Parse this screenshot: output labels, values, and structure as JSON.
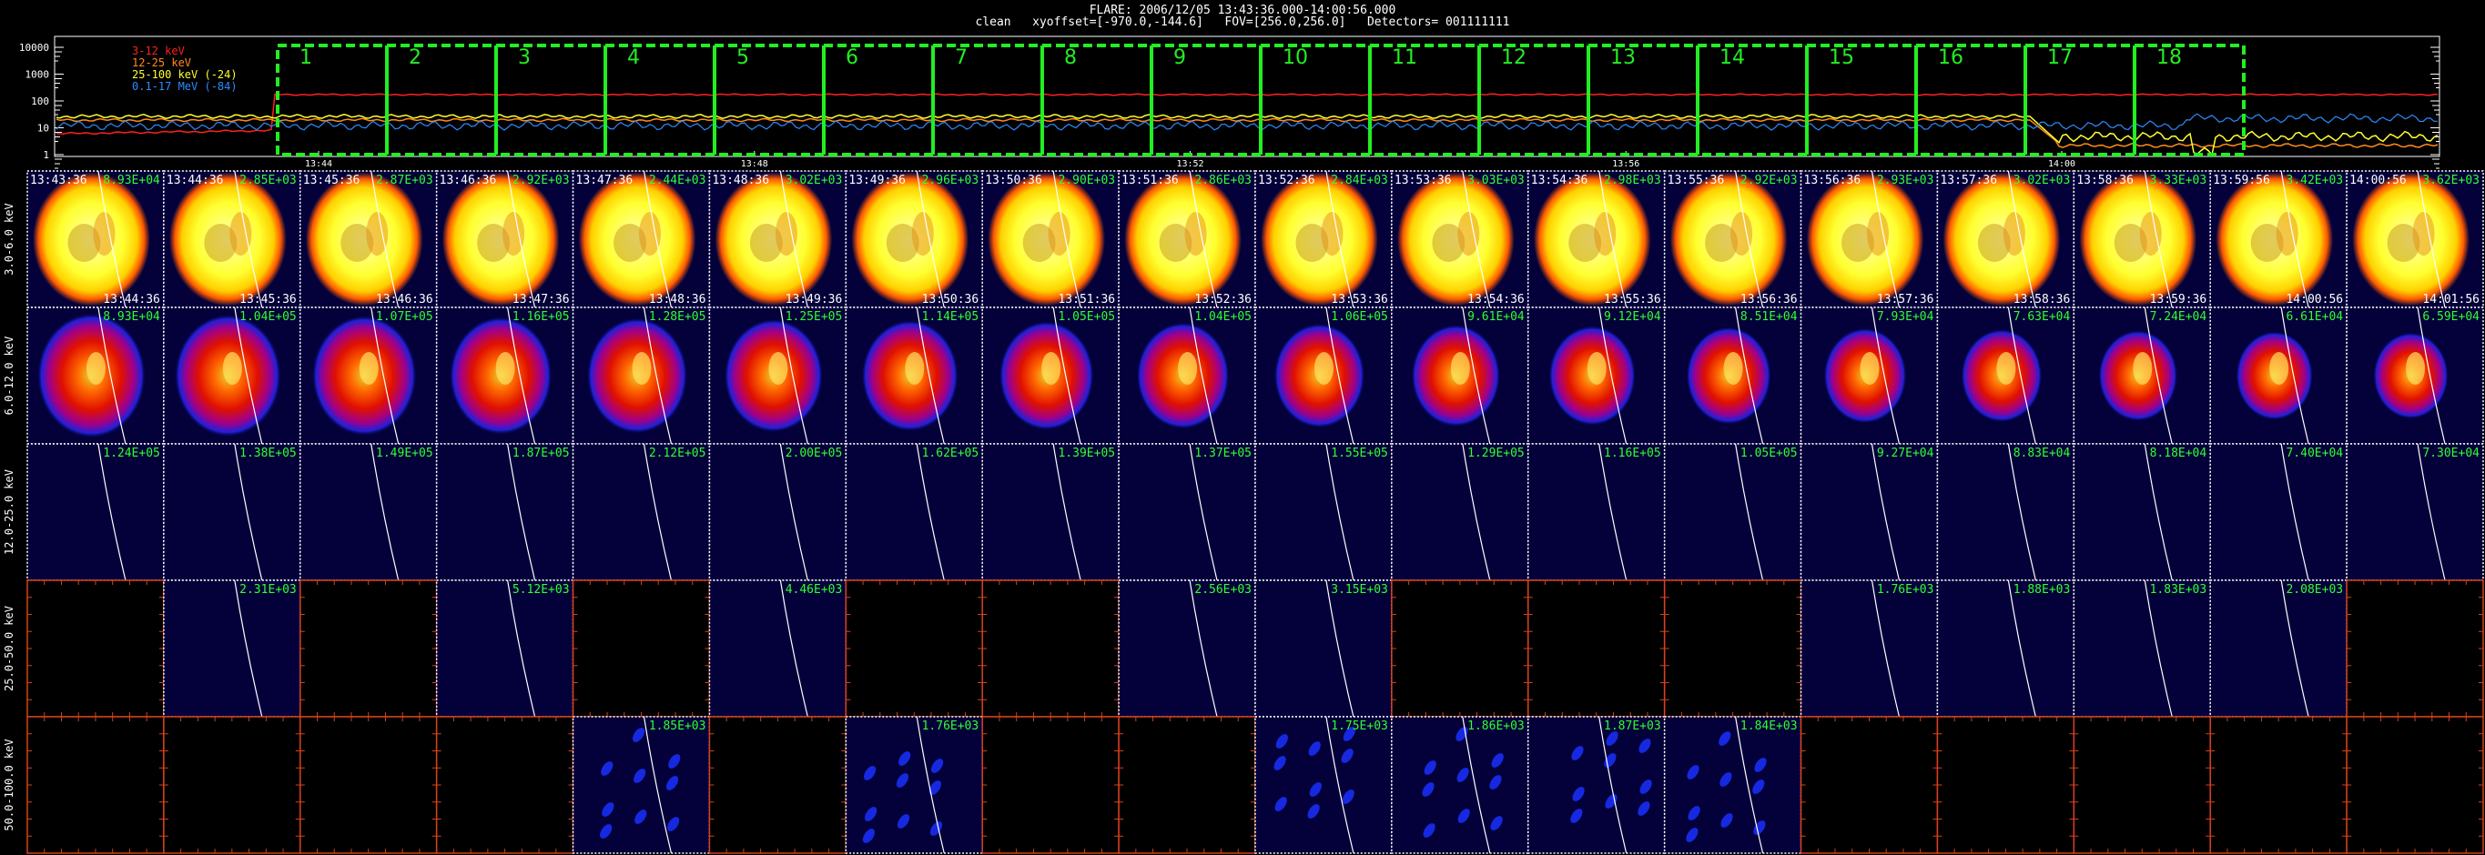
{
  "header": {
    "line1": "FLARE: 2006/12/05 13:43:36.000-14:00:56.000",
    "line2": "clean   xyoffset=[-970.0,-144.6]   FOV=[256.0,256.0]   Detectors= 001111111"
  },
  "lightcurve": {
    "legend": [
      {
        "label": "3-12 keV",
        "color": "#ff2020"
      },
      {
        "label": "12-25 keV",
        "color": "#ff8c1a"
      },
      {
        "label": "25-100 keV (-24)",
        "color": "#ffff30"
      },
      {
        "label": "0.1-17 MeV (-84)",
        "color": "#2a8cff"
      }
    ],
    "ytick_labels": [
      "10000",
      "1000",
      "100",
      "10",
      "1"
    ],
    "xtick_labels": [
      "13:44",
      "13:48",
      "13:52",
      "13:56",
      "14:00"
    ],
    "interval_labels": [
      "1",
      "2",
      "3",
      "4",
      "5",
      "6",
      "7",
      "8",
      "9",
      "10",
      "11",
      "12",
      "13",
      "14",
      "15",
      "16",
      "17",
      "18"
    ],
    "interval_color": "#22ee22"
  },
  "chart_data": {
    "type": "heatmap",
    "bands": [
      "3.0-6.0 keV",
      "6.0-12.0 keV",
      "12.0-25.0 keV",
      "25.0-50.0 keV",
      "50.0-100.0 keV"
    ],
    "start_times": [
      "13:43:36",
      "13:44:36",
      "13:45:36",
      "13:46:36",
      "13:47:36",
      "13:48:36",
      "13:49:36",
      "13:50:36",
      "13:51:36",
      "13:52:36",
      "13:53:36",
      "13:54:36",
      "13:55:36",
      "13:56:36",
      "13:57:36",
      "13:58:36",
      "13:59:56",
      "14:00:56"
    ],
    "end_times": [
      "13:44:36",
      "13:45:36",
      "13:46:36",
      "13:47:36",
      "13:48:36",
      "13:49:36",
      "13:50:36",
      "13:51:36",
      "13:52:36",
      "13:53:36",
      "13:54:36",
      "13:55:36",
      "13:56:36",
      "13:57:36",
      "13:58:36",
      "13:59:36",
      "14:00:56",
      "14:01:56"
    ],
    "peaks": [
      [
        "8.93E+04",
        "2.85E+03",
        "2.87E+03",
        "2.92E+03",
        "2.44E+03",
        "3.02E+03",
        "2.96E+03",
        "2.90E+03",
        "2.86E+03",
        "2.84E+03",
        "3.03E+03",
        "2.98E+03",
        "2.92E+03",
        "2.93E+03",
        "3.02E+03",
        "3.33E+03",
        "3.42E+03",
        "3.62E+03"
      ],
      [
        "8.93E+04",
        "1.04E+05",
        "1.07E+05",
        "1.16E+05",
        "1.28E+05",
        "1.25E+05",
        "1.14E+05",
        "1.05E+05",
        "1.04E+05",
        "1.06E+05",
        "9.61E+04",
        "9.12E+04",
        "8.51E+04",
        "7.93E+04",
        "7.63E+04",
        "7.24E+04",
        "6.61E+04",
        "6.59E+04"
      ],
      [
        "1.24E+05",
        "1.38E+05",
        "1.49E+05",
        "1.87E+05",
        "2.12E+05",
        "2.00E+05",
        "1.62E+05",
        "1.39E+05",
        "1.37E+05",
        "1.55E+05",
        "1.29E+05",
        "1.16E+05",
        "1.05E+05",
        "9.27E+04",
        "8.83E+04",
        "8.18E+04",
        "7.40E+04",
        "7.30E+04"
      ],
      [
        "",
        "2.31E+03",
        "",
        "5.12E+03",
        "",
        "4.46E+03",
        "",
        "",
        "2.56E+03",
        "3.15E+03",
        "",
        "",
        "",
        "1.76E+03",
        "1.88E+03",
        "1.83E+03",
        "2.08E+03",
        ""
      ],
      [
        "",
        "",
        "",
        "",
        "1.85E+03",
        "",
        "1.76E+03",
        "",
        "",
        "1.75E+03",
        "1.86E+03",
        "1.87E+03",
        "1.84E+03",
        "",
        "",
        "",
        "",
        ""
      ]
    ],
    "panel_state": [
      [
        "s",
        "s",
        "s",
        "s",
        "s",
        "s",
        "s",
        "s",
        "s",
        "s",
        "s",
        "s",
        "s",
        "s",
        "s",
        "s",
        "s",
        "s"
      ],
      [
        "m",
        "m",
        "m",
        "m",
        "m",
        "m",
        "m",
        "m",
        "m",
        "m",
        "m",
        "m",
        "m",
        "m",
        "m",
        "m",
        "m",
        "m"
      ],
      [
        "b",
        "b",
        "b",
        "b",
        "b",
        "b",
        "b",
        "b",
        "b",
        "b",
        "b",
        "b",
        "b",
        "b",
        "b",
        "b",
        "b",
        "b"
      ],
      [
        "e",
        "b",
        "e",
        "b",
        "e",
        "b",
        "e",
        "e",
        "b",
        "b",
        "e",
        "e",
        "e",
        "b",
        "b",
        "b",
        "b",
        "e"
      ],
      [
        "e",
        "e",
        "e",
        "e",
        "n",
        "e",
        "n",
        "e",
        "e",
        "n",
        "n",
        "n",
        "n",
        "e",
        "e",
        "e",
        "e",
        "e"
      ]
    ],
    "colors": {
      "saturated": "#ffff40",
      "background": "#04003a",
      "empty": "#000000",
      "axis": "#d8401a"
    }
  }
}
